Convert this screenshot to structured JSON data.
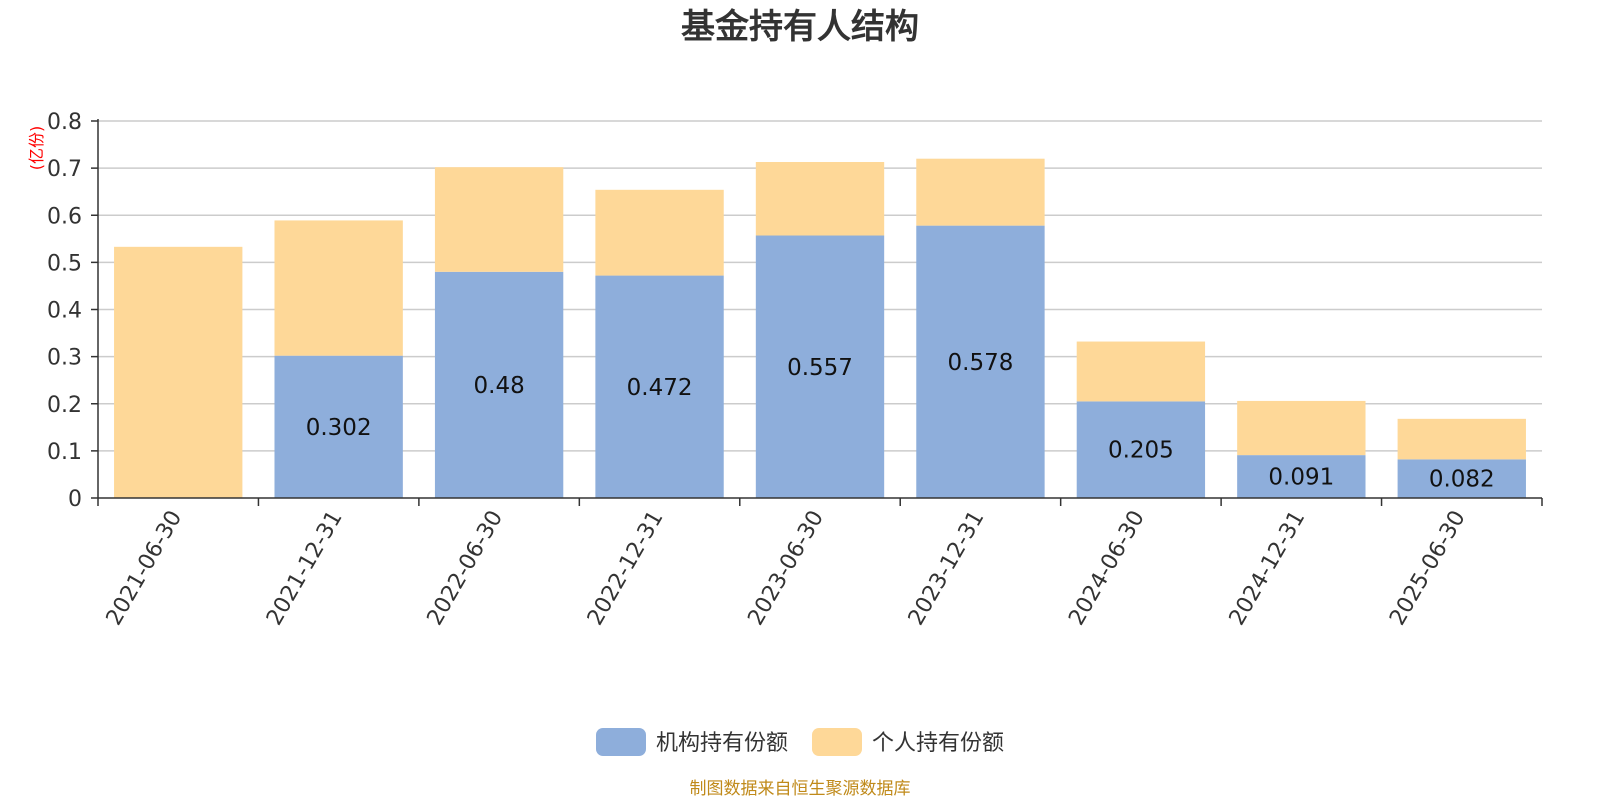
{
  "chart_data": {
    "type": "bar",
    "stacked": true,
    "title": "基金持有人结构",
    "unit_label": "(亿份)",
    "categories": [
      "2021-06-30",
      "2021-12-31",
      "2022-06-30",
      "2022-12-31",
      "2023-06-30",
      "2023-12-31",
      "2024-06-30",
      "2024-12-31",
      "2025-06-30"
    ],
    "series": [
      {
        "name": "机构持有份额",
        "color": "#8eaedb",
        "values": [
          0,
          0.302,
          0.48,
          0.472,
          0.557,
          0.578,
          0.205,
          0.091,
          0.082
        ],
        "labels": [
          "",
          "0.302",
          "0.48",
          "0.472",
          "0.557",
          "0.578",
          "0.205",
          "0.091",
          "0.082"
        ]
      },
      {
        "name": "个人持有份额",
        "color": "#fed898",
        "values": [
          0.533,
          0.287,
          0.222,
          0.182,
          0.156,
          0.142,
          0.127,
          0.115,
          0.086
        ]
      }
    ],
    "ylim": [
      0,
      0.8
    ],
    "yticks": [
      "0",
      "0.1",
      "0.2",
      "0.3",
      "0.4",
      "0.5",
      "0.6",
      "0.7",
      "0.8"
    ],
    "grid": true,
    "legend_position": "bottom-center"
  },
  "source_note": "制图数据来自恒生聚源数据库"
}
